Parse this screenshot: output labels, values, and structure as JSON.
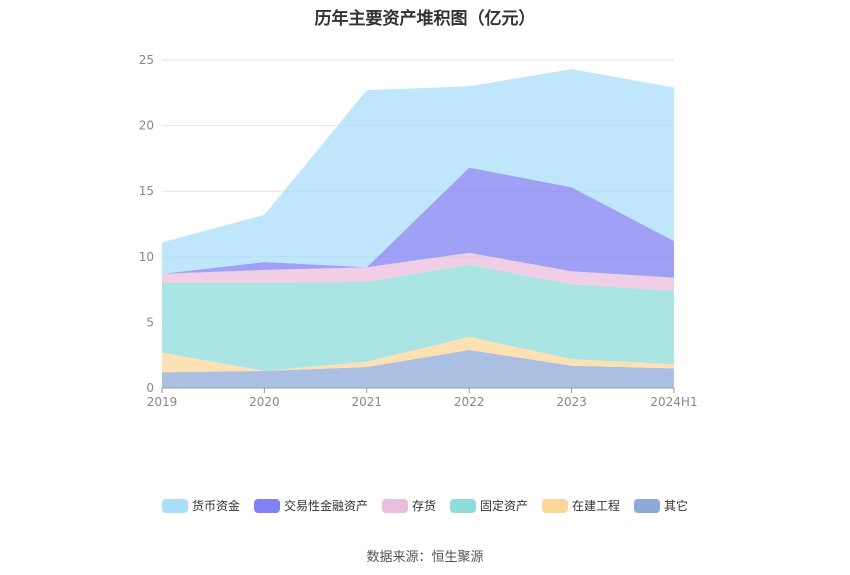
{
  "title": "历年主要资产堆积图（亿元）",
  "source": "数据来源：恒生聚源",
  "chart_data": {
    "type": "area",
    "stacked": true,
    "categories": [
      "2019",
      "2020",
      "2021",
      "2022",
      "2023",
      "2024H1"
    ],
    "ylim": [
      0,
      25
    ],
    "yticks": [
      0,
      5,
      10,
      15,
      20,
      25
    ],
    "grid": true,
    "legend_position": "bottom",
    "series": [
      {
        "name": "其它",
        "color": "#8eaad8",
        "values": [
          1.2,
          1.3,
          1.6,
          2.9,
          1.7,
          1.5
        ]
      },
      {
        "name": "在建工程",
        "color": "#fdd79a",
        "values": [
          1.5,
          0.0,
          0.4,
          1.0,
          0.5,
          0.3
        ]
      },
      {
        "name": "固定资产",
        "color": "#8fdcd9",
        "values": [
          5.3,
          6.7,
          6.1,
          5.5,
          5.7,
          5.6
        ]
      },
      {
        "name": "存货",
        "color": "#e9bedd",
        "values": [
          0.7,
          1.0,
          1.1,
          0.9,
          1.0,
          1.0
        ]
      },
      {
        "name": "交易性金融资产",
        "color": "#8081f3",
        "values": [
          0.0,
          0.6,
          0.0,
          6.5,
          6.4,
          2.8
        ]
      },
      {
        "name": "货币资金",
        "color": "#a9defa",
        "values": [
          2.4,
          3.6,
          13.5,
          6.2,
          9.0,
          11.7
        ]
      }
    ]
  }
}
